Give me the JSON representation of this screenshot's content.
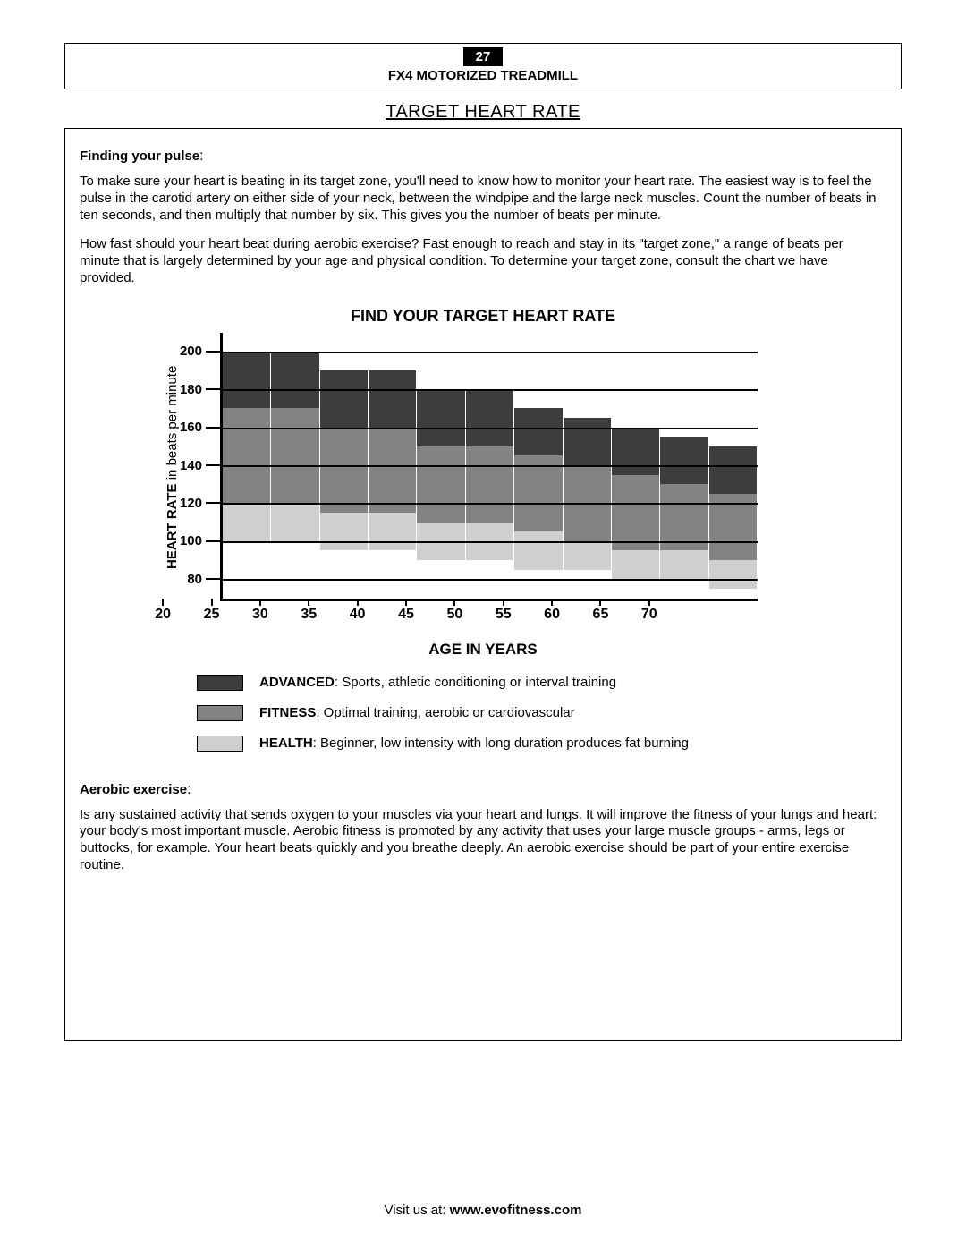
{
  "page_number": "27",
  "product_name": "FX4 MOTORIZED TREADMILL",
  "title": "TARGET HEART RATE",
  "section1_heading": "Finding your pulse",
  "section1_para1": "To make sure your heart is beating in its target zone, you'll need to know how to monitor your heart rate.  The easiest way is to feel the pulse in the carotid artery on either side of your neck, between the windpipe and the large neck muscles.  Count the number of beats in ten seconds, and then multiply that number by six.  This gives you the number of beats per minute.",
  "section1_para2": "How fast should your heart beat during aerobic exercise?  Fast enough to reach and stay in its \"target zone,\" a range of beats per minute that is largely determined by your age and physical condition.  To determine your target zone, consult the chart we have provided.",
  "chart": {
    "title": "FIND YOUR TARGET HEART RATE",
    "y_label_bold": "HEART RATE",
    "y_label_rest": " in beats per minute",
    "x_label": "AGE IN YEARS",
    "y_ticks": [
      80,
      100,
      120,
      140,
      160,
      180,
      200
    ],
    "y_min": 70,
    "y_max": 210,
    "x_ticks": [
      20,
      25,
      30,
      35,
      40,
      45,
      50,
      55,
      60,
      65,
      70
    ],
    "x_min": 17.5,
    "x_max": 72.5,
    "colors": {
      "advanced": "#3d3d3d",
      "fitness": "#838383",
      "health": "#cfcfcf",
      "gridline": "#000000"
    },
    "bars": [
      {
        "age": 20,
        "health": [
          100,
          120
        ],
        "fitness": [
          120,
          170
        ],
        "advanced": [
          170,
          200
        ]
      },
      {
        "age": 25,
        "health": [
          100,
          120
        ],
        "fitness": [
          120,
          170
        ],
        "advanced": [
          170,
          200
        ]
      },
      {
        "age": 30,
        "health": [
          95,
          115
        ],
        "fitness": [
          115,
          160
        ],
        "advanced": [
          160,
          190
        ]
      },
      {
        "age": 35,
        "health": [
          95,
          115
        ],
        "fitness": [
          115,
          160
        ],
        "advanced": [
          160,
          190
        ]
      },
      {
        "age": 40,
        "health": [
          90,
          110
        ],
        "fitness": [
          110,
          150
        ],
        "advanced": [
          150,
          180
        ]
      },
      {
        "age": 45,
        "health": [
          90,
          110
        ],
        "fitness": [
          110,
          150
        ],
        "advanced": [
          150,
          180
        ]
      },
      {
        "age": 50,
        "health": [
          85,
          105
        ],
        "fitness": [
          105,
          145
        ],
        "advanced": [
          145,
          170
        ]
      },
      {
        "age": 55,
        "health": [
          85,
          100
        ],
        "fitness": [
          100,
          140
        ],
        "advanced": [
          140,
          165
        ]
      },
      {
        "age": 60,
        "health": [
          80,
          95
        ],
        "fitness": [
          95,
          135
        ],
        "advanced": [
          135,
          160
        ]
      },
      {
        "age": 65,
        "health": [
          80,
          95
        ],
        "fitness": [
          95,
          130
        ],
        "advanced": [
          130,
          155
        ]
      },
      {
        "age": 70,
        "health": [
          75,
          90
        ],
        "fitness": [
          90,
          125
        ],
        "advanced": [
          125,
          150
        ]
      }
    ],
    "legend": [
      {
        "key": "advanced",
        "label_bold": "ADVANCED",
        "label_rest": ":  Sports, athletic conditioning or interval training"
      },
      {
        "key": "fitness",
        "label_bold": "FITNESS",
        "label_rest": ":  Optimal training, aerobic or cardiovascular"
      },
      {
        "key": "health",
        "label_bold": "HEALTH",
        "label_rest": ":  Beginner, low intensity with long duration produces fat burning"
      }
    ]
  },
  "section2_heading": "Aerobic exercise",
  "section2_para": "Is any sustained activity that sends oxygen to your muscles via your heart and lungs.  It will improve the fitness of your lungs and heart:  your body's most important muscle.  Aerobic fitness is promoted by any activity that uses your large muscle groups - arms, legs or buttocks, for example.  Your heart beats quickly and you breathe deeply.  An aerobic exercise should be part of your entire exercise routine.",
  "footer_prefix": "Visit us at: ",
  "footer_url": "www.evofitness.com"
}
